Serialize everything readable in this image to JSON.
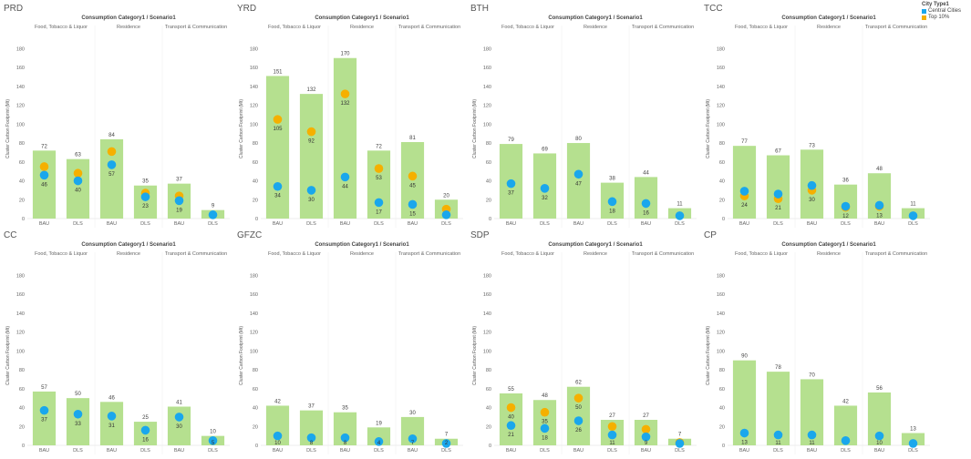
{
  "legend": {
    "title": "City Type1",
    "items": [
      {
        "label": "Central Cities",
        "color": "#1aa7ec"
      },
      {
        "label": "Top 10%",
        "color": "#f5b000"
      }
    ]
  },
  "colors": {
    "bar": "#b5e08f",
    "central": "#1aa7ec",
    "top10": "#f5b000"
  },
  "chart_data": [
    {
      "type": "bar",
      "title": "PRD",
      "header": "Consumption Category1  /  Scenario1",
      "groups": [
        "Food, Tobacco & Liquor",
        "Residence",
        "Transport & Communication"
      ],
      "categories": [
        "BAU",
        "DLS",
        "BAU",
        "DLS",
        "BAU",
        "DLS"
      ],
      "ylabel": "Cluster Carbon Footprint (Mt)",
      "yticks": [
        0,
        20,
        40,
        60,
        80,
        100,
        120,
        140,
        160,
        180
      ],
      "ylim": [
        0,
        190
      ],
      "values": [
        72,
        63,
        84,
        35,
        37,
        9
      ],
      "value_labels": [
        "72",
        "63",
        "84",
        "35",
        "37",
        "9"
      ],
      "series": [
        {
          "name": "Top 10%",
          "values": [
            55,
            48,
            71,
            27,
            24,
            null
          ]
        },
        {
          "name": "Central Cities",
          "values": [
            46,
            40,
            57,
            23,
            19,
            4
          ]
        }
      ],
      "point_labels": [
        "46",
        "40",
        "57",
        "23",
        "19",
        ""
      ]
    },
    {
      "type": "bar",
      "title": "YRD",
      "header": "Consumption Category1  /  Scenario1",
      "groups": [
        "Food, Tobacco & Liquor",
        "Residence",
        "Transport & Communication"
      ],
      "categories": [
        "BAU",
        "DLS",
        "BAU",
        "DLS",
        "BAU",
        "DLS"
      ],
      "ylabel": "Cluster Carbon Footprint (Mt)",
      "yticks": [
        0,
        20,
        40,
        60,
        80,
        100,
        120,
        140,
        160,
        180
      ],
      "ylim": [
        0,
        190
      ],
      "values": [
        151,
        132,
        170,
        72,
        81,
        20
      ],
      "value_labels": [
        "151",
        "132",
        "170",
        "72",
        "81",
        "20"
      ],
      "series": [
        {
          "name": "Top 10%",
          "values": [
            105,
            92,
            132,
            53,
            45,
            10
          ]
        },
        {
          "name": "Central Cities",
          "values": [
            34,
            30,
            44,
            17,
            15,
            4
          ]
        }
      ],
      "point_labels": [
        "105\n34",
        "92\n30",
        "132\n44",
        "53\n17",
        "45\n15",
        ""
      ]
    },
    {
      "type": "bar",
      "title": "BTH",
      "header": "Consumption Category1  /  Scenario1",
      "groups": [
        "Food, Tobacco & Liquor",
        "Residence",
        "Transport & Communication"
      ],
      "categories": [
        "BAU",
        "DLS",
        "BAU",
        "DLS",
        "BAU",
        "DLS"
      ],
      "ylabel": "Cluster Carbon Footprint (Mt)",
      "yticks": [
        0,
        20,
        40,
        60,
        80,
        100,
        120,
        140,
        160,
        180
      ],
      "ylim": [
        0,
        190
      ],
      "values": [
        79,
        69,
        80,
        38,
        44,
        11
      ],
      "value_labels": [
        "79",
        "69",
        "80",
        "38",
        "44",
        "11"
      ],
      "series": [
        {
          "name": "Central Cities",
          "values": [
            37,
            32,
            47,
            18,
            16,
            3
          ]
        }
      ],
      "point_labels": [
        "37",
        "32",
        "47",
        "18",
        "16",
        ""
      ]
    },
    {
      "type": "bar",
      "title": "TCC",
      "header": "Consumption Category1  /  Scenario1",
      "groups": [
        "Food, Tobacco & Liquor",
        "Residence",
        "Transport & Communication"
      ],
      "categories": [
        "BAU",
        "DLS",
        "BAU",
        "DLS",
        "BAU",
        "DLS"
      ],
      "ylabel": "Cluster Carbon Footprint (Mt)",
      "yticks": [
        0,
        20,
        40,
        60,
        80,
        100,
        120,
        140,
        160,
        180
      ],
      "ylim": [
        0,
        190
      ],
      "values": [
        77,
        67,
        73,
        36,
        48,
        11
      ],
      "value_labels": [
        "77",
        "67",
        "73",
        "36",
        "48",
        "11"
      ],
      "series": [
        {
          "name": "Top 10%",
          "values": [
            24,
            21,
            30,
            12,
            13,
            null
          ]
        },
        {
          "name": "Central Cities",
          "values": [
            29,
            26,
            35,
            13,
            14,
            3
          ]
        }
      ],
      "point_labels": [
        "24",
        "21",
        "30",
        "12",
        "13",
        ""
      ]
    },
    {
      "type": "bar",
      "title": "CC",
      "header": "Consumption Category1  /  Scenario1",
      "groups": [
        "Food, Tobacco & Liquor",
        "Residence",
        "Transport & Communication"
      ],
      "categories": [
        "BAU",
        "DLS",
        "BAU",
        "DLS",
        "BAU",
        "DLS"
      ],
      "ylabel": "Cluster Carbon Footprint (Mt)",
      "yticks": [
        0,
        20,
        40,
        60,
        80,
        100,
        120,
        140,
        160,
        180
      ],
      "ylim": [
        0,
        190
      ],
      "values": [
        57,
        50,
        46,
        25,
        41,
        10
      ],
      "value_labels": [
        "57",
        "50",
        "46",
        "25",
        "41",
        "10"
      ],
      "series": [
        {
          "name": "Central Cities",
          "values": [
            37,
            33,
            31,
            16,
            30,
            5
          ]
        }
      ],
      "point_labels": [
        "37",
        "33",
        "31",
        "16",
        "30",
        "5"
      ]
    },
    {
      "type": "bar",
      "title": "GFZC",
      "header": "Consumption Category1  /  Scenario1",
      "groups": [
        "Food, Tobacco & Liquor",
        "Residence",
        "Transport & Communication"
      ],
      "categories": [
        "BAU",
        "DLS",
        "BAU",
        "DLS",
        "BAU",
        "DLS"
      ],
      "ylabel": "Cluster Carbon Footprint (Mt)",
      "yticks": [
        0,
        20,
        40,
        60,
        80,
        100,
        120,
        140,
        160,
        180
      ],
      "ylim": [
        0,
        190
      ],
      "values": [
        42,
        37,
        35,
        19,
        30,
        7
      ],
      "value_labels": [
        "42",
        "37",
        "35",
        "19",
        "30",
        "7"
      ],
      "series": [
        {
          "name": "Central Cities",
          "values": [
            10,
            8,
            8,
            4,
            7,
            2
          ]
        }
      ],
      "point_labels": [
        "10",
        "8",
        "8",
        "4",
        "7",
        "2"
      ]
    },
    {
      "type": "bar",
      "title": "SDP",
      "header": "Consumption Category1  /  Scenario1",
      "groups": [
        "Food, Tobacco & Liquor",
        "Residence",
        "Transport & Communication"
      ],
      "categories": [
        "BAU",
        "DLS",
        "BAU",
        "DLS",
        "BAU",
        "DLS"
      ],
      "ylabel": "Cluster Carbon Footprint (Mt)",
      "yticks": [
        0,
        20,
        40,
        60,
        80,
        100,
        120,
        140,
        160,
        180
      ],
      "ylim": [
        0,
        190
      ],
      "values": [
        55,
        48,
        62,
        27,
        27,
        7
      ],
      "value_labels": [
        "55",
        "48",
        "62",
        "27",
        "27",
        "7"
      ],
      "series": [
        {
          "name": "Top 10%",
          "values": [
            40,
            35,
            50,
            20,
            17,
            3
          ]
        },
        {
          "name": "Central Cities",
          "values": [
            21,
            18,
            26,
            11,
            9,
            2
          ]
        }
      ],
      "point_labels": [
        "40\n21",
        "35\n18",
        "50\n26",
        "11",
        "9",
        ""
      ]
    },
    {
      "type": "bar",
      "title": "CP",
      "header": "Consumption Category1  /  Scenario1",
      "groups": [
        "Food, Tobacco & Liquor",
        "Residence",
        "Transport & Communication"
      ],
      "categories": [
        "BAU",
        "DLS",
        "BAU",
        "DLS",
        "BAU",
        "DLS"
      ],
      "ylabel": "Cluster Carbon Footprint (Mt)",
      "yticks": [
        0,
        20,
        40,
        60,
        80,
        100,
        120,
        140,
        160,
        180
      ],
      "ylim": [
        0,
        190
      ],
      "values": [
        90,
        78,
        70,
        42,
        56,
        13
      ],
      "value_labels": [
        "90",
        "78",
        "70",
        "42",
        "56",
        "13"
      ],
      "series": [
        {
          "name": "Central Cities",
          "values": [
            13,
            11,
            11,
            5,
            10,
            2
          ]
        }
      ],
      "point_labels": [
        "13",
        "11",
        "11",
        "",
        "10",
        ""
      ]
    }
  ]
}
